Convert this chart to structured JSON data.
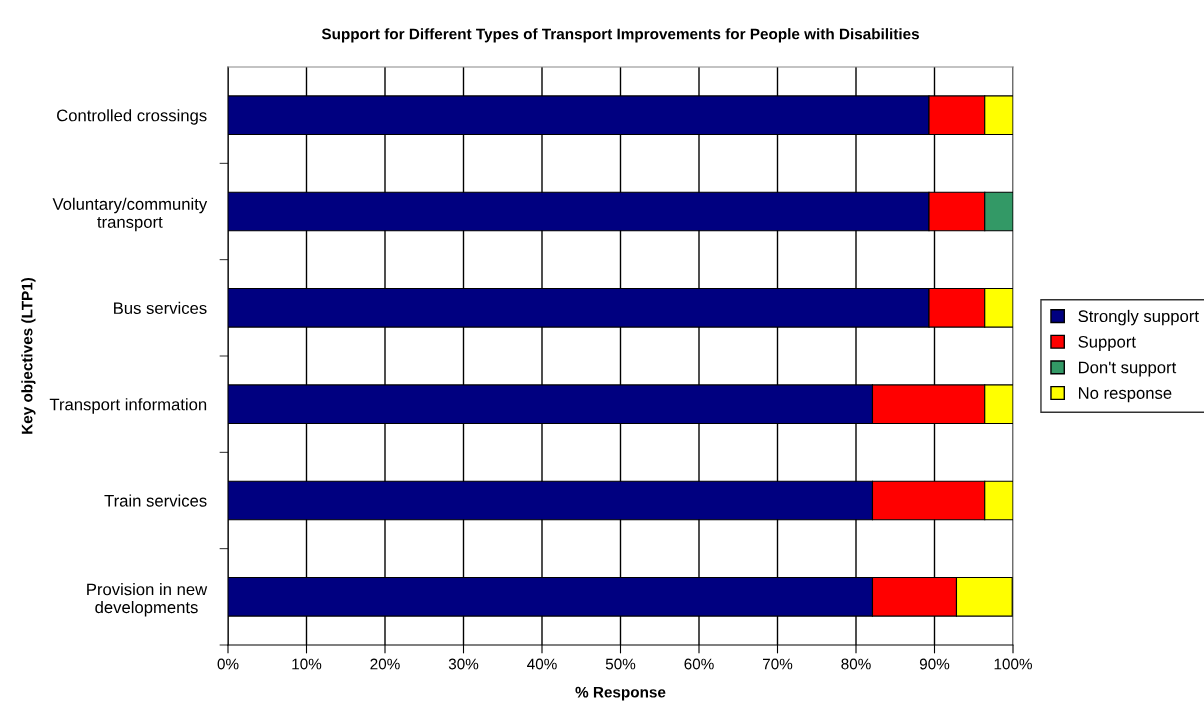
{
  "chart_data": {
    "type": "bar",
    "orientation": "horizontal",
    "stacked": true,
    "title": "Support for Different Types of Transport Improvements for People with Disabilities",
    "xlabel": "% Response",
    "ylabel": "Key objectives (LTP1)",
    "categories": [
      "Controlled crossings",
      "Voluntary/community\ntransport",
      "Bus services",
      "Transport information",
      "Train services",
      "Provision in new\ndevelopments"
    ],
    "series": [
      {
        "name": "Strongly support",
        "color": "#000080",
        "values": [
          89.3,
          89.3,
          89.3,
          82.1,
          82.1,
          82.1
        ]
      },
      {
        "name": "Support",
        "color": "#ff0000",
        "values": [
          7.1,
          7.1,
          7.1,
          14.3,
          14.3,
          10.7
        ]
      },
      {
        "name": "Don't support",
        "color": "#339966",
        "values": [
          0,
          3.6,
          0,
          0,
          0,
          0
        ]
      },
      {
        "name": "No response",
        "color": "#ffff00",
        "values": [
          3.6,
          0,
          3.6,
          3.6,
          3.6,
          7.1
        ]
      }
    ],
    "xlim": [
      0,
      100
    ],
    "xticks": [
      {
        "value": 0,
        "label": "0%"
      },
      {
        "value": 10,
        "label": "10%"
      },
      {
        "value": 20,
        "label": "20%"
      },
      {
        "value": 30,
        "label": "30%"
      },
      {
        "value": 40,
        "label": "40%"
      },
      {
        "value": 50,
        "label": "50%"
      },
      {
        "value": 60,
        "label": "60%"
      },
      {
        "value": 70,
        "label": "70%"
      },
      {
        "value": 80,
        "label": "80%"
      },
      {
        "value": 90,
        "label": "90%"
      },
      {
        "value": 100,
        "label": "100%"
      }
    ],
    "grid": "x",
    "legend": "right"
  }
}
